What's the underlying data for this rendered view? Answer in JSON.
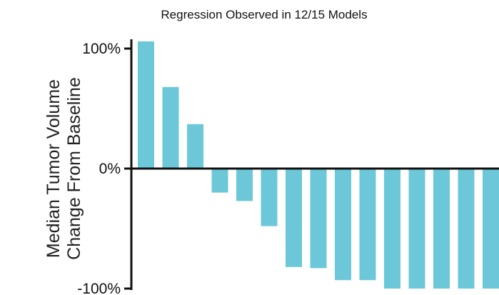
{
  "chart_data": {
    "type": "bar",
    "title": "",
    "subtitle": "Regression Observed in 12/15 Models",
    "ylabel_line1": "Median Tumor Volume",
    "ylabel_line2": "Change From Baseline",
    "xlabel": "",
    "ylim": [
      -100,
      100
    ],
    "yticks": [
      {
        "value": 100,
        "label": "100%"
      },
      {
        "value": 0,
        "label": "0%"
      },
      {
        "value": -100,
        "label": "-100%"
      }
    ],
    "values": [
      106,
      68,
      37,
      -20,
      -27,
      -48,
      -82,
      -83,
      -93,
      -93,
      -100,
      -100,
      -100,
      -100,
      -100
    ],
    "bar_color": "#6cc8d8",
    "grid": false,
    "legend": "none"
  }
}
